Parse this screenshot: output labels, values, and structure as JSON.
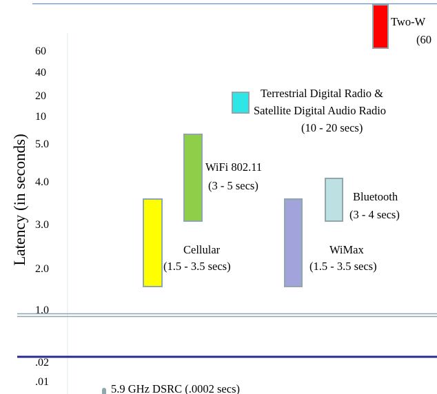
{
  "chart_data": {
    "type": "range-bar",
    "title": "",
    "xlabel": "",
    "ylabel": "Latency (in seconds)",
    "y_tick_labels": [
      ".01",
      ".02",
      "1.0",
      "2.0",
      "3.0",
      "4.0",
      "5.0",
      "10",
      "20",
      "40",
      "60"
    ],
    "reference_lines": [
      {
        "value": 1.0,
        "style": "double-gray"
      },
      {
        "value": 0.02,
        "style": "solid-navy"
      }
    ],
    "series": [
      {
        "name": "5.9 GHz DSRC",
        "range_label": "(.0002 secs)",
        "min": 0.0002,
        "max": 0.0002,
        "color": "#8fa7ad"
      },
      {
        "name": "Cellular",
        "range_label": "(1.5 - 3.5 secs)",
        "min": 1.5,
        "max": 3.5,
        "color": "#ffff00"
      },
      {
        "name": "WiFi 802.11",
        "range_label": "(3 - 5 secs)",
        "min": 3,
        "max": 5,
        "color": "#8fce48"
      },
      {
        "name": "WiMax",
        "range_label": "(1.5 - 3.5 secs)",
        "min": 1.5,
        "max": 3.5,
        "color": "#a3a3dc"
      },
      {
        "name": "Bluetooth",
        "range_label": "(3 - 4 secs)",
        "min": 3,
        "max": 4,
        "color": "#bde0e2"
      },
      {
        "name_lines": [
          "Terrestrial Digital Radio &",
          "Satellite Digital Audio Radio"
        ],
        "range_label": "(10 - 20 secs)",
        "min": 10,
        "max": 20,
        "color": "#2ee6e6"
      },
      {
        "name": "Two-W",
        "range_label": "(60",
        "min": 60,
        "max": 60,
        "color": "#ff0000"
      }
    ],
    "grid": false,
    "legend": "none"
  }
}
